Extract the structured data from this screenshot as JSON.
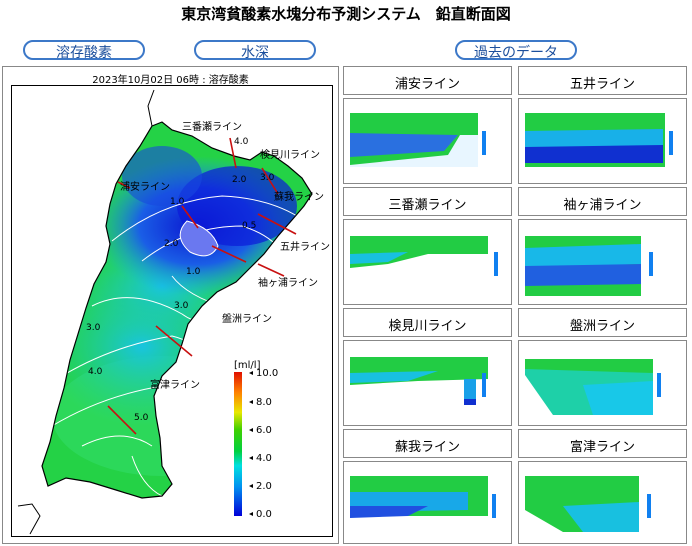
{
  "page": {
    "title": "東京湾貧酸素水塊分布予測システム　鉛直断面図"
  },
  "buttons": {
    "dissolved_oxygen": "溶存酸素",
    "water_depth": "水深",
    "past_data": "過去のデータ"
  },
  "map": {
    "header": "2023年10月02日 06時 : 溶存酸素",
    "line_labels": [
      "三番瀬ライン",
      "検見川ライン",
      "浦安ライン",
      "蘇我ライン",
      "五井ライン",
      "袖ヶ浦ライン",
      "盤洲ライン",
      "富津ライン"
    ],
    "contour_labels": [
      "4.0",
      "2.0",
      "3.0",
      "1.0",
      "0.5",
      "2.0",
      "1.0",
      "3.0",
      "3.0",
      "4.0",
      "5.0"
    ],
    "colorbar": {
      "unit": "[ml/l]",
      "ticks": [
        "10.0",
        "8.0",
        "6.0",
        "4.0",
        "2.0",
        "0.0"
      ]
    },
    "colors": {
      "low": "#1a1ad6",
      "mid": "#16c8e6",
      "high": "#22d63a"
    }
  },
  "sections": [
    {
      "title": "浦安ライン"
    },
    {
      "title": "五井ライン"
    },
    {
      "title": "三番瀬ライン"
    },
    {
      "title": "袖ヶ浦ライン"
    },
    {
      "title": "検見川ライン"
    },
    {
      "title": "盤洲ライン"
    },
    {
      "title": "蘇我ライン"
    },
    {
      "title": "富津ライン"
    }
  ]
}
